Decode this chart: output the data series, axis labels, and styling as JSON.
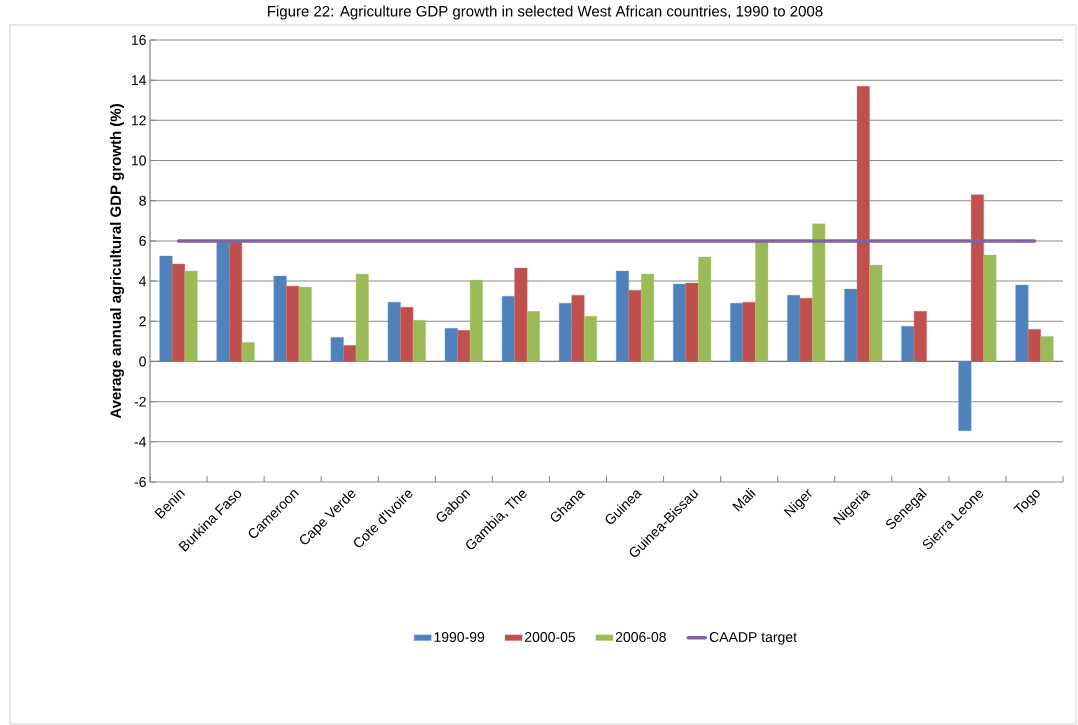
{
  "chart_data": {
    "type": "bar",
    "title": "Figure 22: Agriculture GDP growth in selected West African countries, 1990 to 2008",
    "ylabel": "Average annual agricultural GDP growth (%)",
    "categories": [
      "Benin",
      "Burkina Faso",
      "Cameroon",
      "Cape Verde",
      "Cote d'Ivoire",
      "Gabon",
      "Gambia, The",
      "Ghana",
      "Guinea",
      "Guinea-Bissau",
      "Mali",
      "Niger",
      "Nigeria",
      "Senegal",
      "Sierra Leone",
      "Togo"
    ],
    "series": [
      {
        "name": "1990-99",
        "color": "#4f81bd",
        "values": [
          5.25,
          5.95,
          4.25,
          1.2,
          2.95,
          1.65,
          3.25,
          2.9,
          4.5,
          3.85,
          2.9,
          3.3,
          3.6,
          1.75,
          -3.45,
          3.8
        ]
      },
      {
        "name": "2000-05",
        "color": "#c0504d",
        "values": [
          4.85,
          5.95,
          3.75,
          0.8,
          2.7,
          1.55,
          4.65,
          3.3,
          3.55,
          3.9,
          2.95,
          3.15,
          13.7,
          2.5,
          8.3,
          1.6
        ]
      },
      {
        "name": "2006-08",
        "color": "#9bbb59",
        "values": [
          4.5,
          0.95,
          3.7,
          4.35,
          2.05,
          4.05,
          2.5,
          2.25,
          4.35,
          5.2,
          5.95,
          6.85,
          4.8,
          null,
          5.3,
          1.25
        ]
      },
      {
        "name": "CAADP target",
        "type": "line",
        "color": "#8064a2",
        "values": [
          6,
          6,
          6,
          6,
          6,
          6,
          6,
          6,
          6,
          6,
          6,
          6,
          6,
          6,
          6,
          6
        ]
      }
    ],
    "ylim": [
      -6,
      16
    ],
    "yticks": [
      -6,
      -4,
      -2,
      0,
      2,
      4,
      6,
      8,
      10,
      12,
      14,
      16
    ],
    "grid": "y",
    "legend": "bottom"
  }
}
